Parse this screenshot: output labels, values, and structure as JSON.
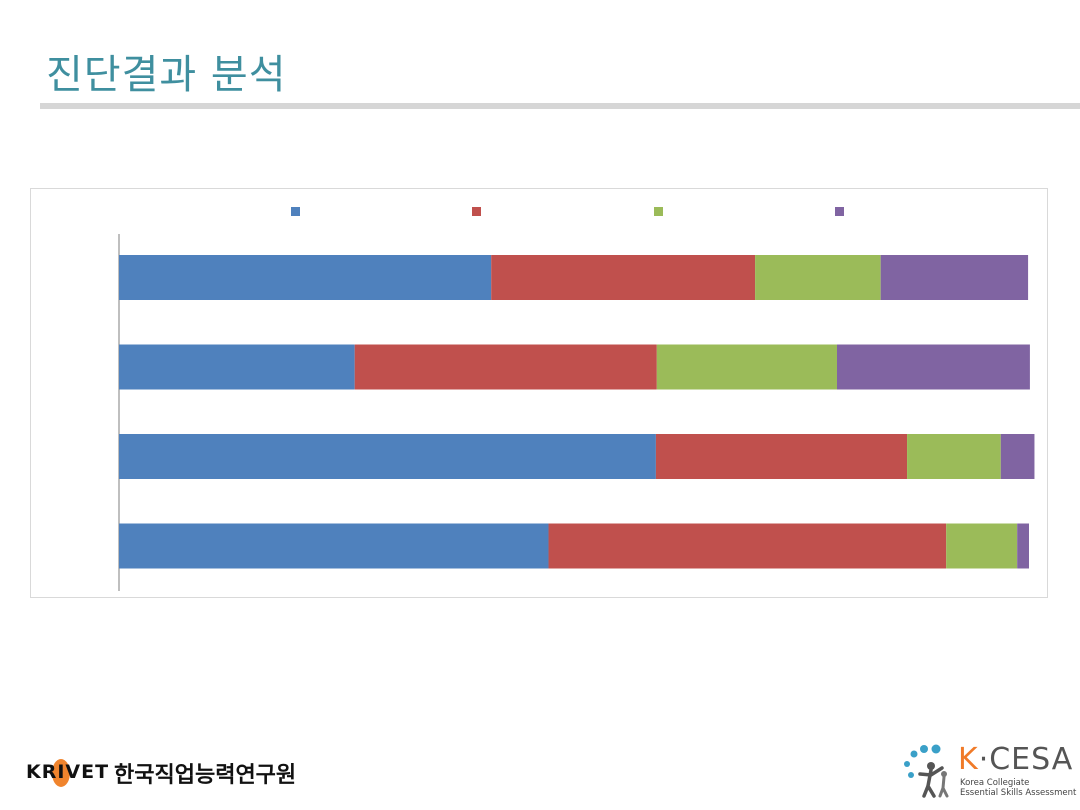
{
  "page": {
    "title": "진단결과 분석"
  },
  "footer": {
    "left_logo": {
      "text": "KRIVET",
      "org_name": "한국직업능력연구원",
      "accent_color": "#ef7d22"
    },
    "right_logo": {
      "name_prefix": "K",
      "name_rest": "·CESA",
      "subtitle_line1": "Korea Collegiate",
      "subtitle_line2": "Essential Skills Assessment",
      "accent_color": "#f07a28",
      "icon_color": "#3aa0c8"
    }
  },
  "chart_data": {
    "type": "bar",
    "orientation": "horizontal",
    "stacked": true,
    "normalized": true,
    "categories": [
      "",
      "",
      "",
      ""
    ],
    "series": [
      {
        "color": "#4f81bd",
        "values": [
          47.2,
          59.0,
          25.9,
          40.9
        ]
      },
      {
        "color": "#c0504d",
        "values": [
          43.7,
          27.6,
          33.2,
          29.0
        ]
      },
      {
        "color": "#9bbb59",
        "values": [
          7.8,
          10.3,
          19.8,
          13.8
        ]
      },
      {
        "color": "#8064a2",
        "values": [
          1.3,
          3.7,
          21.2,
          16.2
        ]
      }
    ],
    "legend_position": "top",
    "xlim": [
      0,
      100
    ],
    "grid": false
  }
}
